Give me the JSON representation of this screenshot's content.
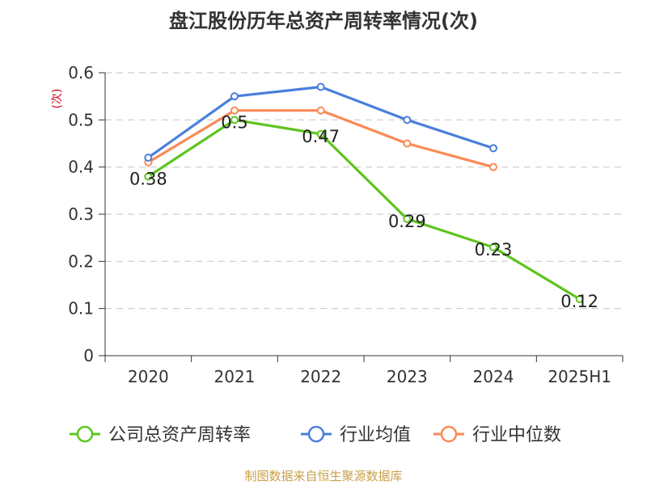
{
  "chart_data": {
    "type": "line",
    "title": "盘江股份历年总资产周转率情况(次)",
    "ylabel": "(次)",
    "xlabel": "",
    "categories": [
      "2020",
      "2021",
      "2022",
      "2023",
      "2024",
      "2025H1"
    ],
    "ylim": [
      0,
      0.6
    ],
    "yticks": [
      "0",
      "0.1",
      "0.2",
      "0.3",
      "0.4",
      "0.5",
      "0.6"
    ],
    "grid": true,
    "legend_position": "bottom",
    "series": [
      {
        "name": "公司总资产周转率",
        "color": "#5ec41f",
        "values": [
          0.38,
          0.5,
          0.47,
          0.29,
          0.23,
          0.12
        ],
        "labels": [
          "0.38",
          "0.5",
          "0.47",
          "0.29",
          "0.23",
          "0.12"
        ]
      },
      {
        "name": "行业均值",
        "color": "#4a7fdc",
        "values": [
          0.42,
          0.55,
          0.57,
          0.5,
          0.44,
          null
        ]
      },
      {
        "name": "行业中位数",
        "color": "#f98a55",
        "values": [
          0.41,
          0.52,
          0.52,
          0.45,
          0.4,
          null
        ]
      }
    ]
  },
  "footer": {
    "source": "制图数据来自恒生聚源数据库"
  }
}
